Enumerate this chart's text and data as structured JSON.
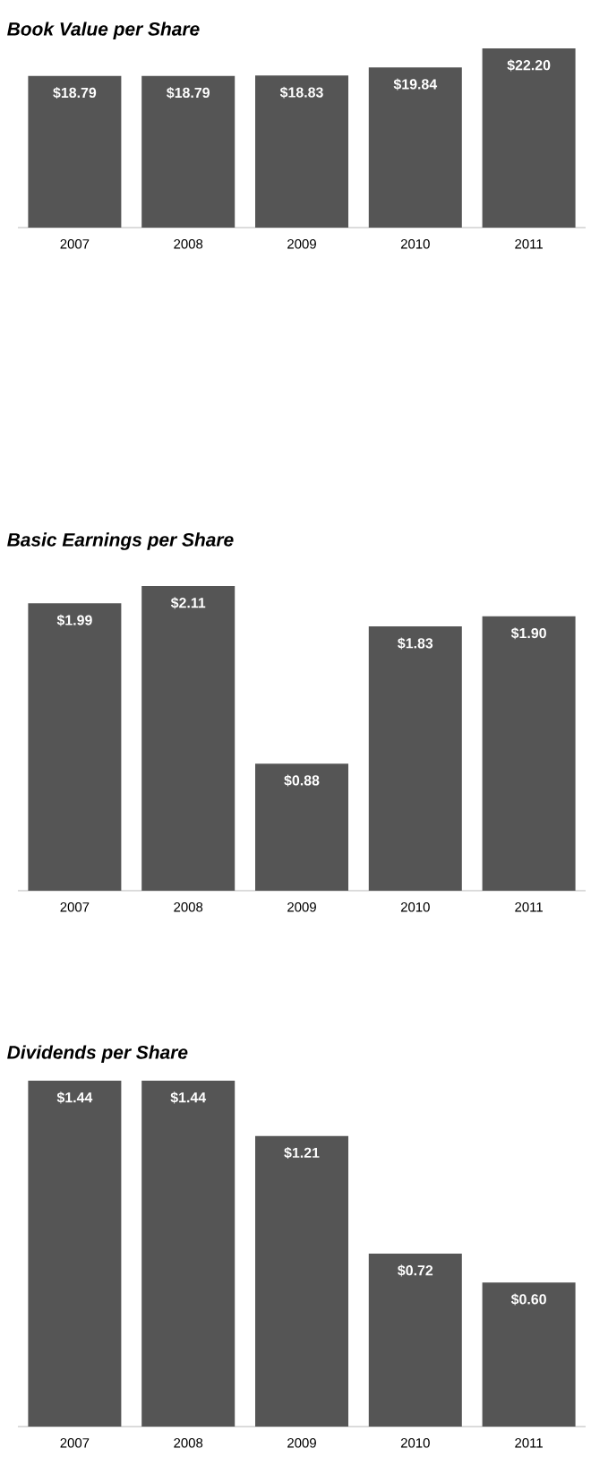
{
  "chart_data": [
    {
      "type": "bar",
      "title": "Book Value per Share",
      "categories": [
        "2007",
        "2008",
        "2009",
        "2010",
        "2011"
      ],
      "values": [
        18.79,
        18.79,
        18.83,
        19.84,
        22.2
      ],
      "value_labels": [
        "$18.79",
        "$18.79",
        "$18.83",
        "$19.84",
        "$22.20"
      ],
      "color": "#555555"
    },
    {
      "type": "bar",
      "title": "Basic Earnings per Share",
      "categories": [
        "2007",
        "2008",
        "2009",
        "2010",
        "2011"
      ],
      "values": [
        1.99,
        2.11,
        0.88,
        1.83,
        1.9
      ],
      "value_labels": [
        "$1.99",
        "$2.11",
        "$0.88",
        "$1.83",
        "$1.90"
      ],
      "color": "#555555"
    },
    {
      "type": "bar",
      "title": "Dividends per Share",
      "categories": [
        "2007",
        "2008",
        "2009",
        "2010",
        "2011"
      ],
      "values": [
        1.44,
        1.44,
        1.21,
        0.72,
        0.6
      ],
      "value_labels": [
        "$1.44",
        "$1.44",
        "$1.21",
        "$0.72",
        "$0.60"
      ],
      "color": "#555555"
    }
  ]
}
